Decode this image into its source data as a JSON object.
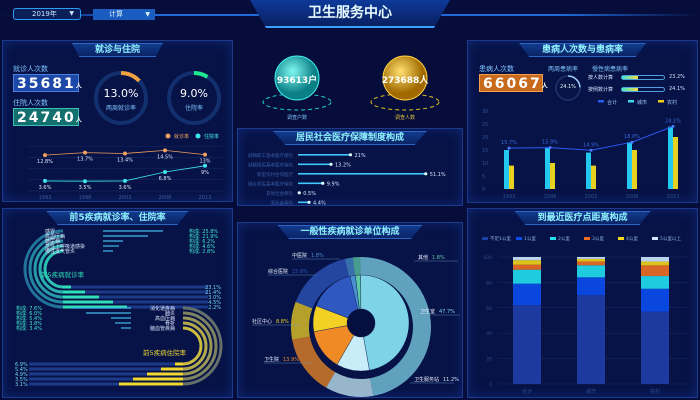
{
  "header": {
    "title": "卫生服务中心",
    "year": "2019年",
    "mode": "计算"
  },
  "visits": {
    "title": "就诊与住院",
    "visit_label": "就诊人次数",
    "visit_count": "35681",
    "visit_unit": "人",
    "inpatient_label": "住院人次数",
    "inpatient_count": "24740",
    "inpatient_unit": "人",
    "rate1": {
      "value": "13.0%",
      "label": "两周就诊率",
      "fraction": 0.13
    },
    "rate2": {
      "value": "9.0%",
      "label": "住院率",
      "fraction": 0.09
    }
  },
  "spheres": [
    {
      "value": "93613户",
      "label": "调查户数"
    },
    {
      "value": "273688人",
      "label": "调查人数"
    }
  ],
  "insurance": {
    "title": "居民社会医疗保障制度构成"
  },
  "illness": {
    "title": "患病人次数与患病率",
    "count_label": "患病人次数",
    "count": "66067",
    "unit": "人",
    "two_week_label": "两周患病率",
    "two_week_value": "24.1%",
    "two_week_fraction": 0.241,
    "chronic_label": "慢性病患病率",
    "chronic": [
      {
        "label": "按人数计算",
        "value": "23.2%",
        "fraction": 0.232
      },
      {
        "label": "按例数计算",
        "value": "24.1%",
        "fraction": 0.241
      }
    ]
  },
  "top5": {
    "title": "前5疾病就诊率、住院率",
    "visit_caption": "前5疾病就诊率",
    "inpatient_caption": "前5疾病住院率",
    "visit_items": [
      {
        "name": "感冒",
        "value": "构成: 25.8%"
      },
      {
        "name": "高血压病",
        "value": "构成: 21.9%"
      },
      {
        "name": "糖尿病",
        "value": "构成: 6.2%"
      },
      {
        "name": "急性上呼吸道感染",
        "value": "构成: 4.6%"
      },
      {
        "name": "慢性支气管炎",
        "value": "构成: 2.8%"
      }
    ],
    "visit_rates": [
      "2.2%",
      "4.5%",
      "3.0%",
      "21.4%",
      "23.1%"
    ],
    "inpatient_items": [
      {
        "name": "消化道疾病",
        "value": "构成: 7.6%"
      },
      {
        "name": "肺炎",
        "value": "构成: 6.0%"
      },
      {
        "name": "高血压病",
        "value": "构成: 5.4%"
      },
      {
        "name": "骨折",
        "value": "构成: 3.8%"
      },
      {
        "name": "脑血管疾病",
        "value": "构成: 3.4%"
      }
    ],
    "inpatient_rates": [
      "3.1%",
      "3.5%",
      "4.9%",
      "5.4%",
      "6.9%"
    ]
  },
  "units": {
    "title": "一般性疾病就诊单位构成"
  },
  "distance": {
    "title": "到最近医疗点距离构成"
  },
  "colors": {
    "accent": "#8ff0ff",
    "visit_line": "#f0a060",
    "inpatient_line": "#3fe6f0"
  },
  "chart_data": [
    {
      "type": "line",
      "legend": [
        "就诊率",
        "住院率"
      ],
      "categories": [
        "1993",
        "1998",
        "2003",
        "2008",
        "2013"
      ],
      "series": [
        {
          "name": "就诊率",
          "values": [
            12.8,
            13.7,
            13.4,
            14.5,
            13
          ],
          "labels": [
            "12.8%",
            "13.7%",
            "13.4%",
            "14.5%",
            "13%"
          ]
        },
        {
          "name": "住院率",
          "values": [
            3.6,
            3.5,
            3.6,
            6.8,
            9
          ],
          "labels": [
            "3.6%",
            "3.5%",
            "3.6%",
            "6.8%",
            "9%"
          ]
        }
      ],
      "ylim": [
        0,
        16
      ]
    },
    {
      "type": "bar",
      "orientation": "horizontal",
      "categories": [
        "城镇职工基本医疗保险",
        "城镇居民基本医疗保险",
        "新型农村合作医疗",
        "城乡居民基本医疗保险",
        "其他社会保险",
        "无社会保险"
      ],
      "values": [
        21,
        13.2,
        51.1,
        9.9,
        0.5,
        4.4
      ],
      "labels": [
        "21%",
        "13.2%",
        "51.1%",
        "9.9%",
        "0.5%",
        "4.4%"
      ]
    },
    {
      "type": "bar",
      "legend": [
        "合计",
        "城市",
        "农村"
      ],
      "categories": [
        "1993",
        "1998",
        "2003",
        "2008",
        "2013"
      ],
      "yticks": [
        "0",
        "5",
        "10",
        "15",
        "20",
        "25",
        "30"
      ],
      "ylim": [
        0,
        30
      ],
      "series": [
        {
          "name": "合计",
          "values": [
            15.7,
            15.9,
            14.9,
            18.0,
            24.1
          ],
          "labels": [
            "15.7%",
            "15.9%",
            "14.9%",
            "18.0%",
            "24.1%"
          ]
        },
        {
          "name": "城市",
          "values": [
            15,
            16,
            14,
            18,
            24
          ]
        },
        {
          "name": "农村",
          "values": [
            9,
            10,
            9,
            15,
            20
          ]
        }
      ]
    },
    {
      "type": "pie",
      "categories": [
        "其他",
        "卫生室",
        "卫生服务站",
        "卫生院",
        "社区中心",
        "综合医院",
        "中医院"
      ],
      "values": [
        1.8,
        47.7,
        11.2,
        13.9,
        8.8,
        15.6,
        1.8
      ],
      "labels": [
        "1.8%",
        "47.7%",
        "11.2%",
        "13.9%",
        "8.8%",
        "15.6%",
        "1.8%"
      ],
      "colors": [
        "#5fc9a8",
        "#7fd3e6",
        "#c8ecf8",
        "#f08a24",
        "#f2d024",
        "#2f58c0",
        "#4a8fd0"
      ]
    },
    {
      "type": "bar",
      "stacked": true,
      "categories": [
        "合计",
        "城市",
        "农村"
      ],
      "yticks": [
        "0",
        "20",
        "40",
        "60",
        "80",
        "100"
      ],
      "ylim": [
        0,
        100
      ],
      "series": [
        {
          "name": "不足1公里",
          "values": [
            62,
            70,
            57
          ],
          "color": "#1f3fa8"
        },
        {
          "name": "1公里",
          "values": [
            17,
            14,
            18
          ],
          "color": "#0a4ef0"
        },
        {
          "name": "2公里",
          "values": [
            11,
            9.5,
            10
          ],
          "color": "#22e0ee"
        },
        {
          "name": "3公里",
          "values": [
            4,
            3,
            8.4
          ],
          "color": "#f07020"
        },
        {
          "name": "4公里",
          "values": [
            3.5,
            2,
            3
          ],
          "color": "#f4d818"
        },
        {
          "name": "5公里以上",
          "values": [
            2.5,
            1.5,
            3.6
          ],
          "color": "#cfe8ff"
        }
      ]
    }
  ]
}
